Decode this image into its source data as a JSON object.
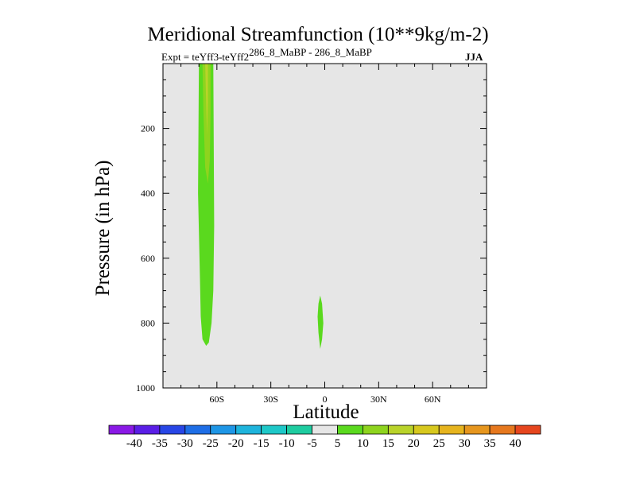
{
  "chart_data": {
    "type": "contour",
    "title": "Meridional Streamfunction (10**9kg/m-2)",
    "subtitle_left": "Expt = teYff3-teYff2",
    "subtitle_left_superscript": "286_8_MaBP - 286_8_MaBP",
    "subtitle_right": "JJA",
    "xlabel": "Latitude",
    "ylabel": "Pressure (in hPa)",
    "xlim": [
      -90,
      90
    ],
    "ylim": [
      1000,
      0
    ],
    "y_inverted": true,
    "xticks": [
      {
        "value": -60,
        "label": "60S"
      },
      {
        "value": -30,
        "label": "30S"
      },
      {
        "value": 0,
        "label": "0"
      },
      {
        "value": 30,
        "label": "30N"
      },
      {
        "value": 60,
        "label": "60N"
      }
    ],
    "yticks": [
      {
        "value": 200,
        "label": "200"
      },
      {
        "value": 400,
        "label": "400"
      },
      {
        "value": 600,
        "label": "600"
      },
      {
        "value": 800,
        "label": "800"
      },
      {
        "value": 1000,
        "label": "1000"
      }
    ],
    "background_color": "#e6e6e6",
    "regions": [
      {
        "name": "south-cell-outer",
        "level": 5,
        "color": "#5ad91e",
        "outline": [
          [
            -70,
            0
          ],
          [
            -62,
            0
          ],
          [
            -61.5,
            500
          ],
          [
            -62,
            700
          ],
          [
            -63,
            800
          ],
          [
            -64.5,
            860
          ],
          [
            -66,
            870
          ],
          [
            -68,
            850
          ],
          [
            -69,
            780
          ],
          [
            -69.5,
            650
          ],
          [
            -70.5,
            400
          ],
          [
            -70,
            0
          ]
        ]
      },
      {
        "name": "south-cell-inner",
        "level": 10,
        "color": "#8ed41e",
        "outline": [
          [
            -68,
            0
          ],
          [
            -63.5,
            0
          ],
          [
            -63.5,
            150
          ],
          [
            -64,
            300
          ],
          [
            -65,
            370
          ],
          [
            -66.5,
            320
          ],
          [
            -67.5,
            150
          ],
          [
            -68,
            0
          ]
        ]
      },
      {
        "name": "south-cell-core",
        "level": 15,
        "color": "#b9d32a",
        "outline": [
          [
            -66.5,
            0
          ],
          [
            -65,
            0
          ],
          [
            -65,
            120
          ],
          [
            -65.5,
            220
          ],
          [
            -66,
            120
          ],
          [
            -66.5,
            0
          ]
        ]
      },
      {
        "name": "equator-blob",
        "level": 5,
        "color": "#5ad91e",
        "outline": [
          [
            -2.5,
            715
          ],
          [
            -1.5,
            740
          ],
          [
            -0.8,
            800
          ],
          [
            -1.5,
            850
          ],
          [
            -2.5,
            880
          ],
          [
            -3.5,
            830
          ],
          [
            -4,
            780
          ],
          [
            -3.5,
            740
          ],
          [
            -2.5,
            715
          ]
        ]
      }
    ],
    "colorbar": {
      "labels": [
        "-40",
        "-35",
        "-30",
        "-25",
        "-20",
        "-15",
        "-10",
        "-5",
        "5",
        "10",
        "15",
        "20",
        "25",
        "30",
        "35",
        "40"
      ],
      "colors": [
        "#8a19e6",
        "#5a1ee6",
        "#2846e6",
        "#1e6ee6",
        "#1e96e6",
        "#1eb4dc",
        "#1ec8c8",
        "#1ecca0",
        "#e6e6e6",
        "#5ad91e",
        "#8ed41e",
        "#b9d32a",
        "#d7c81e",
        "#e6b41e",
        "#e6961e",
        "#e6781e",
        "#e6461e"
      ]
    }
  }
}
